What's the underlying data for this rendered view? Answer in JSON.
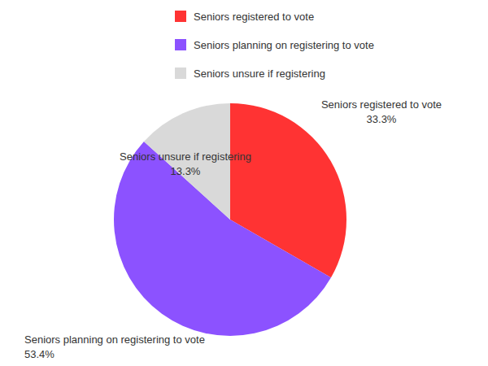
{
  "chart_data": {
    "type": "pie",
    "categories": [
      "Seniors registered to vote",
      "Seniors planning on registering to vote",
      "Seniors unsure if registering"
    ],
    "values": [
      33.3,
      53.4,
      13.3
    ],
    "value_labels": [
      "33.3%",
      "53.4%",
      "13.3%"
    ],
    "colors": [
      "#ff3333",
      "#8c52ff",
      "#d9d9d9"
    ],
    "legend": "top",
    "data_labels": true
  }
}
